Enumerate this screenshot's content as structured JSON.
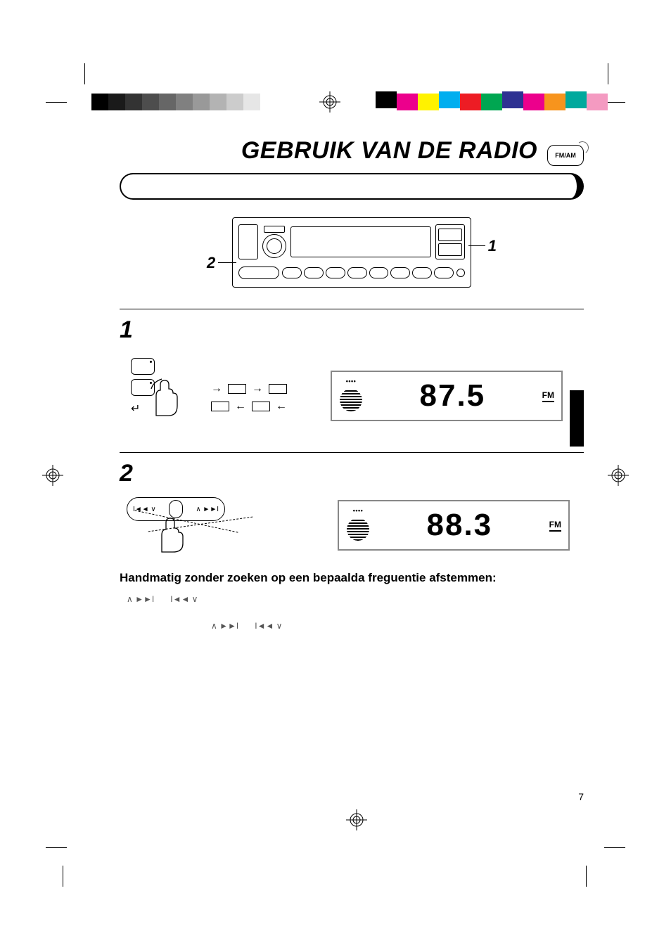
{
  "print_marks": {
    "gray_ramp": [
      "#000000",
      "#1a1a1a",
      "#333333",
      "#4d4d4d",
      "#666666",
      "#808080",
      "#999999",
      "#b3b3b3",
      "#cccccc",
      "#e6e6e6",
      "#ffffff"
    ],
    "process_colors": [
      "#000000",
      "#ec008c",
      "#fff200",
      "#00aeef",
      "#ed1c24",
      "#00a651",
      "#2e3192",
      "#ec008c",
      "#f7941d",
      "#00a99d",
      "#f49ac1"
    ]
  },
  "header": {
    "title": "GEBRUIK VAN DE RADIO",
    "band_icon_label": "FM/AM"
  },
  "device": {
    "callout_1": "1",
    "callout_2": "2"
  },
  "steps": {
    "s1": {
      "num": "1",
      "lcd_left": "",
      "lcd_freq": "87.5",
      "lcd_band": "FM"
    },
    "s2": {
      "num": "2",
      "lcd_freq": "88.3",
      "lcd_band": "FM",
      "seek_prev_label": "I◄◄ ∨",
      "seek_next_label": "∧ ►►I"
    }
  },
  "para": {
    "bold": "Handmatig zonder zoeken op een bepaalda freguentie afstemmen:",
    "glyph_up_next": "∧ ►►I",
    "glyph_prev_down": "I◄◄ ∨"
  },
  "page_number": "7",
  "colors": {
    "text": "#000000",
    "muted": "#555555",
    "border": "#000000",
    "lcd_border": "#888888",
    "background": "#ffffff"
  }
}
